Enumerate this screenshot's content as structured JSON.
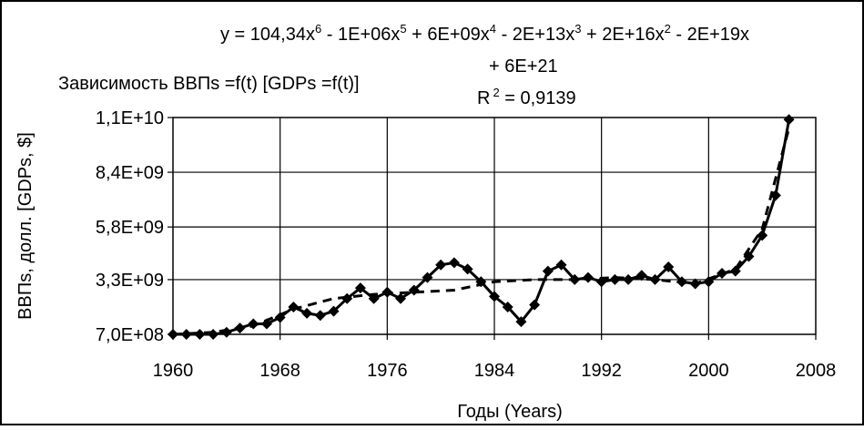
{
  "chart_data": {
    "type": "line",
    "title": "Зависимость ВВПs =f(t) [GDPs =f(t)]",
    "xlabel": "Годы (Years)",
    "ylabel": "ВВПs, долл. [GDPs, $]",
    "xlim": [
      1960,
      2008
    ],
    "ylim": [
      700000000,
      11000000000
    ],
    "x_ticks": [
      1960,
      1968,
      1976,
      1984,
      1992,
      2000,
      2008
    ],
    "y_ticks": [
      {
        "value": 700000000,
        "label": "7,0E+08"
      },
      {
        "value": 3300000000,
        "label": "3,3E+09"
      },
      {
        "value": 5800000000,
        "label": "5,8E+09"
      },
      {
        "value": 8400000000,
        "label": "8,4E+09"
      },
      {
        "value": 11000000000,
        "label": "1,1E+10"
      }
    ],
    "grid": true,
    "series": [
      {
        "style": "solid line with diamond markers",
        "color": "#000000",
        "x": [
          1960,
          1961,
          1962,
          1963,
          1964,
          1965,
          1966,
          1967,
          1968,
          1969,
          1970,
          1971,
          1972,
          1973,
          1974,
          1975,
          1976,
          1977,
          1978,
          1979,
          1980,
          1981,
          1982,
          1983,
          1984,
          1985,
          1986,
          1987,
          1988,
          1989,
          1990,
          1991,
          1992,
          1993,
          1994,
          1995,
          1996,
          1997,
          1998,
          1999,
          2000,
          2001,
          2002,
          2003,
          2004,
          2005,
          2006
        ],
        "y": [
          700000000,
          700000000,
          700000000,
          700000000,
          800000000,
          1000000000,
          1200000000,
          1200000000,
          1500000000,
          2000000000,
          1700000000,
          1600000000,
          1800000000,
          2400000000,
          2900000000,
          2400000000,
          2700000000,
          2400000000,
          2800000000,
          3400000000,
          4000000000,
          4100000000,
          3800000000,
          3200000000,
          2500000000,
          2000000000,
          1300000000,
          2100000000,
          3700000000,
          4000000000,
          3300000000,
          3400000000,
          3200000000,
          3300000000,
          3300000000,
          3500000000,
          3300000000,
          3900000000,
          3200000000,
          3100000000,
          3200000000,
          3600000000,
          3700000000,
          4400000000,
          5400000000,
          7300000000,
          10900000000
        ]
      },
      {
        "style": "dashed polynomial trendline",
        "color": "#000000",
        "x": [
          1960,
          1963,
          1966,
          1969,
          1972,
          1975,
          1978,
          1981,
          1984,
          1987,
          1990,
          1993,
          1996,
          1999,
          2002,
          2004,
          2006
        ],
        "y": [
          700000000,
          800000000,
          1100000000,
          1900000000,
          2400000000,
          2600000000,
          2700000000,
          2800000000,
          3200000000,
          3300000000,
          3300000000,
          3400000000,
          3300000000,
          3100000000,
          3800000000,
          5700000000,
          10500000000
        ]
      }
    ],
    "annotations": {
      "equation_line1": "y = 104,34x",
      "equation_exp1": "6",
      "equation_mid1": " - 1E+06x",
      "equation_exp2": "5",
      "equation_mid2": " + 6E+09x",
      "equation_exp3": "4",
      "equation_mid3": " - 2E+13x",
      "equation_exp4": "3",
      "equation_mid4": " + 2E+16x",
      "equation_exp5": "2",
      "equation_tail": " - 2E+19x",
      "equation_line2": "+ 6E+21",
      "r2_prefix": "R",
      "r2_exp": "2",
      "r2_value": " = 0,9139"
    }
  }
}
